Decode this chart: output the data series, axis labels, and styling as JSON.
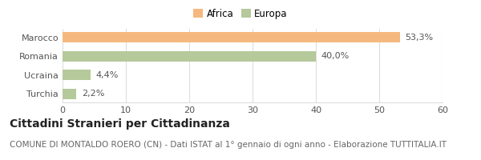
{
  "categories": [
    "Marocco",
    "Romania",
    "Ucraina",
    "Turchia"
  ],
  "values": [
    53.3,
    40.0,
    4.4,
    2.2
  ],
  "labels": [
    "53,3%",
    "40,0%",
    "4,4%",
    "2,2%"
  ],
  "colors": [
    "#F5B97F",
    "#B5C99A",
    "#B5C99A",
    "#B5C99A"
  ],
  "legend": [
    {
      "label": "Africa",
      "color": "#F5B97F"
    },
    {
      "label": "Europa",
      "color": "#B5C99A"
    }
  ],
  "xlim": [
    0,
    60
  ],
  "xticks": [
    0,
    10,
    20,
    30,
    40,
    50,
    60
  ],
  "title": "Cittadini Stranieri per Cittadinanza",
  "subtitle": "COMUNE DI MONTALDO ROERO (CN) - Dati ISTAT al 1° gennaio di ogni anno - Elaborazione TUTTITALIA.IT",
  "bg_color": "#ffffff",
  "grid_color": "#dddddd",
  "bar_height": 0.55,
  "title_fontsize": 10,
  "subtitle_fontsize": 7.5,
  "tick_fontsize": 8,
  "label_fontsize": 8,
  "legend_fontsize": 8.5
}
